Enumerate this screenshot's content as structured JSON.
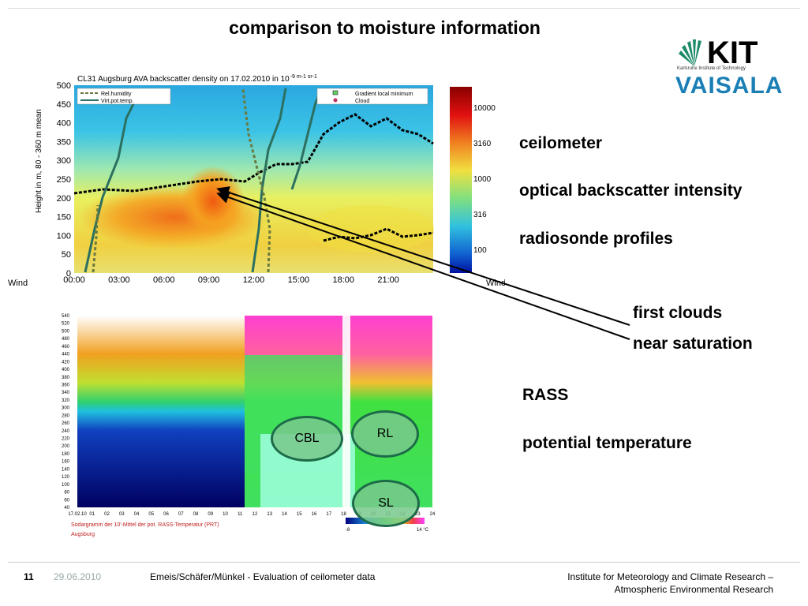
{
  "slide": {
    "title": "comparison to moisture information",
    "labels": {
      "ceilometer": "ceilometer",
      "optical": "optical backscatter intensity",
      "radiosonde": "radiosonde profiles",
      "first_clouds": "first clouds",
      "near_saturation": "near saturation",
      "rass": "RASS",
      "potential_temperature": "potential temperature"
    },
    "logo": {
      "kit": "KIT",
      "kit_subtitle": "Karlsruhe Institute of Technology",
      "vaisala": "VAISALA"
    },
    "footer": {
      "page": "11",
      "date": "29.06.2010",
      "authors": "Emeis/Schäfer/Münkel - Evaluation of ceilometer data",
      "institute_line1": "Institute for Meteorology and Climate Research –",
      "institute_line2": "Atmospheric Environmental Research"
    }
  },
  "ceilometer_plot": {
    "title": "CL31 Augsburg AVA backscatter density on 17.02.2010 in 10",
    "title_unit": "-9 m-1 sr-1",
    "ylabel": "Height in m, 80 - 360 m mean",
    "wind_label": "Wind",
    "y_ticks": [
      "500",
      "450",
      "400",
      "350",
      "300",
      "250",
      "200",
      "150",
      "100",
      "50",
      "0"
    ],
    "x_ticks": [
      "00:00",
      "03:00",
      "06:00",
      "09:00",
      "12:00",
      "15:00",
      "18:00",
      "21:00"
    ],
    "legend": [
      "Rel.humidity",
      "Virt.pot.temp.",
      "Gradient local minimum",
      "Cloud"
    ],
    "colorbar_ticks": [
      "10000",
      "3160",
      "1000",
      "316",
      "100"
    ]
  },
  "rass_plot": {
    "y_ticks": [
      "540",
      "520",
      "500",
      "480",
      "460",
      "440",
      "420",
      "400",
      "380",
      "360",
      "340",
      "320",
      "300",
      "280",
      "260",
      "240",
      "220",
      "200",
      "180",
      "160",
      "140",
      "120",
      "100",
      "80",
      "60",
      "40"
    ],
    "x_ticks": [
      "17.02.10",
      "01",
      "02",
      "03",
      "04",
      "05",
      "06",
      "07",
      "08",
      "09",
      "10",
      "11",
      "12",
      "13",
      "14",
      "15",
      "16",
      "17",
      "18",
      "19",
      "20",
      "21",
      "22",
      "23",
      "24"
    ],
    "caption": "Sodargramm der 10'-Mittel der pot. RASS-Temperatur (PRT)",
    "place": "Augsburg",
    "scale_min": "-8",
    "scale_max": "14 °C",
    "ovals": {
      "cbl": "CBL",
      "rl": "RL",
      "sl": "SL"
    }
  }
}
